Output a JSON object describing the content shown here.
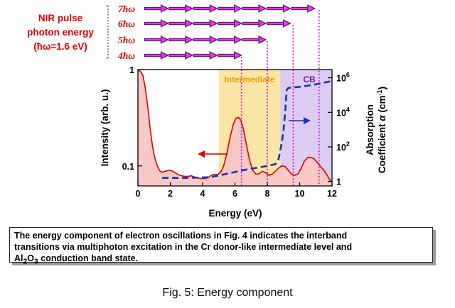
{
  "chart_data": {
    "type": "line",
    "xlabel": "Energy (eV)",
    "ylabel_left": "Intensity (arb. u.)",
    "ylabel_right": "Absorption Coefficient α (cm⁻¹)",
    "xlim": [
      0,
      12
    ],
    "xticks": [
      "0",
      "2",
      "4",
      "6",
      "8",
      "10",
      "12"
    ],
    "yticks_left": [
      {
        "value": 1,
        "label": "1"
      },
      {
        "value": 0.1,
        "label": "0.1"
      }
    ],
    "yticks_right": [
      {
        "value": 1,
        "label": "1",
        "sup": ""
      },
      {
        "value": 100,
        "label": "10",
        "sup": "2"
      },
      {
        "value": 10000,
        "label": "10",
        "sup": "4"
      },
      {
        "value": 1000000,
        "label": "10",
        "sup": "6"
      }
    ],
    "ylim_left": [
      0.062,
      1.0
    ],
    "ylim_right": [
      0.55,
      3000000
    ],
    "log_scale_left": true,
    "log_scale_right": true,
    "regions": [
      {
        "label": "Intermediate",
        "x0": 5.0,
        "x1": 8.8,
        "color": "#f9e6a6",
        "label_color": "#f59b00"
      },
      {
        "label": "CB",
        "x0": 8.8,
        "x1": 12.0,
        "color": "#dcccf2",
        "label_color": "#6b1f7a"
      }
    ],
    "series": [
      {
        "name": "",
        "axis": "left",
        "color": "#e00000",
        "fill": "#f8c8c4",
        "dashed": false,
        "points": [
          [
            0,
            0.98
          ],
          [
            0.15,
            0.96
          ],
          [
            0.3,
            0.88
          ],
          [
            0.45,
            0.66
          ],
          [
            0.6,
            0.42
          ],
          [
            0.75,
            0.25
          ],
          [
            0.9,
            0.16
          ],
          [
            1.05,
            0.12
          ],
          [
            1.2,
            0.1
          ],
          [
            1.35,
            0.089
          ],
          [
            1.5,
            0.086
          ],
          [
            1.7,
            0.088
          ],
          [
            1.9,
            0.09
          ],
          [
            2.1,
            0.089
          ],
          [
            2.3,
            0.085
          ],
          [
            2.5,
            0.081
          ],
          [
            2.7,
            0.079
          ],
          [
            2.9,
            0.078
          ],
          [
            3.1,
            0.078
          ],
          [
            3.3,
            0.079
          ],
          [
            3.5,
            0.077
          ],
          [
            3.7,
            0.075
          ],
          [
            3.9,
            0.074
          ],
          [
            4.1,
            0.074
          ],
          [
            4.3,
            0.075
          ],
          [
            4.5,
            0.079
          ],
          [
            4.7,
            0.082
          ],
          [
            4.9,
            0.081
          ],
          [
            5.1,
            0.085
          ],
          [
            5.3,
            0.1
          ],
          [
            5.5,
            0.135
          ],
          [
            5.7,
            0.2
          ],
          [
            5.9,
            0.27
          ],
          [
            6.05,
            0.31
          ],
          [
            6.2,
            0.32
          ],
          [
            6.35,
            0.3
          ],
          [
            6.5,
            0.25
          ],
          [
            6.7,
            0.17
          ],
          [
            6.9,
            0.115
          ],
          [
            7.1,
            0.09
          ],
          [
            7.3,
            0.082
          ],
          [
            7.5,
            0.083
          ],
          [
            7.7,
            0.088
          ],
          [
            7.9,
            0.085
          ],
          [
            8.1,
            0.08
          ],
          [
            8.3,
            0.082
          ],
          [
            8.5,
            0.088
          ],
          [
            8.7,
            0.095
          ],
          [
            8.9,
            0.1
          ],
          [
            9.1,
            0.099
          ],
          [
            9.3,
            0.09
          ],
          [
            9.5,
            0.082
          ],
          [
            9.7,
            0.08
          ],
          [
            9.9,
            0.083
          ],
          [
            10.1,
            0.095
          ],
          [
            10.3,
            0.113
          ],
          [
            10.5,
            0.122
          ],
          [
            10.7,
            0.123
          ],
          [
            10.9,
            0.118
          ],
          [
            11.1,
            0.108
          ],
          [
            11.3,
            0.098
          ],
          [
            11.5,
            0.09
          ],
          [
            11.7,
            0.08
          ],
          [
            11.85,
            0.072
          ],
          [
            12.0,
            0.068
          ]
        ]
      },
      {
        "name": "",
        "axis": "right",
        "color": "#1d2fb5",
        "dashed": true,
        "points": [
          [
            1.5,
            1.6
          ],
          [
            2,
            1.6
          ],
          [
            3,
            1.6
          ],
          [
            4,
            1.7
          ],
          [
            4.5,
            1.8
          ],
          [
            5,
            2.2
          ],
          [
            5.5,
            2.8
          ],
          [
            6,
            3.5
          ],
          [
            6.5,
            4.5
          ],
          [
            7,
            5.5
          ],
          [
            7.5,
            6.5
          ],
          [
            8,
            8
          ],
          [
            8.5,
            10
          ],
          [
            8.7,
            20
          ],
          [
            8.8,
            60
          ],
          [
            8.9,
            200
          ],
          [
            9.0,
            900
          ],
          [
            9.1,
            9000
          ],
          [
            9.2,
            200000
          ],
          [
            9.3,
            260000
          ],
          [
            9.5,
            270000
          ],
          [
            10,
            300000
          ],
          [
            10.5,
            350000
          ],
          [
            11,
            420000
          ],
          [
            11.5,
            520000
          ],
          [
            12,
            650000
          ]
        ]
      }
    ],
    "photon_levels": [
      {
        "label": "4ħω",
        "energy": 6.4
      },
      {
        "label": "5ħω",
        "energy": 8.0
      },
      {
        "label": "6ħω",
        "energy": 9.6
      },
      {
        "label": "7ħω",
        "energy": 11.2
      }
    ],
    "annotations": {
      "nir_line1": "NIR pulse",
      "nir_line2": "photon energy",
      "nir_line3": "(ħω=1.6 eV)"
    }
  },
  "caption": {
    "line1": "The energy component of electron oscillations in Fig. 4 indicates the interband",
    "line2": "transitions via multiphoton excitation in the Cr donor-like intermediate level and",
    "line3_pre": "Al",
    "line3_sub1": "2",
    "line3_mid": "O",
    "line3_sub2": "3",
    "line3_post": " conduction band state."
  },
  "figure_label": "Fig. 5: Energy component",
  "colors": {
    "nir_text": "#e00000",
    "arrow_fill": "#ee33ee",
    "arrow_outline": "#3a0b52",
    "dotted_line": "#e000e0",
    "left_arrow": "#e00000",
    "right_arrow": "#1d2fb5"
  }
}
